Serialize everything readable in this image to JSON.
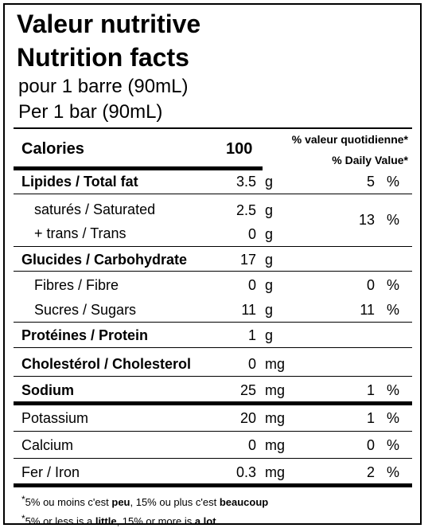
{
  "title_fr": "Valeur nutritive",
  "title_en": "Nutrition facts",
  "serving_fr": "pour 1 barre (90mL)",
  "serving_en": "Per 1 bar (90mL)",
  "calories": {
    "label": "Calories",
    "value": "100"
  },
  "dv_header_fr": "% valeur quotidienne*",
  "dv_header_en": "% Daily Value*",
  "rows": [
    {
      "label": "Lipides / Total fat",
      "amount": "3.5",
      "unit": "g",
      "dv": "5",
      "pct": "%"
    },
    {
      "label": "saturés / Saturated",
      "amount": "2.5",
      "unit": "g"
    },
    {
      "label": "+ trans / Trans",
      "amount": "0",
      "unit": "g"
    },
    {
      "label": "Glucides / Carbohydrate",
      "amount": "17",
      "unit": "g"
    },
    {
      "label": "Fibres / Fibre",
      "amount": "0",
      "unit": "g",
      "dv": "0",
      "pct": "%"
    },
    {
      "label": "Sucres / Sugars",
      "amount": "11",
      "unit": "g",
      "dv": "11",
      "pct": "%"
    },
    {
      "label": "Protéines / Protein",
      "amount": "1",
      "unit": "g"
    },
    {
      "label": "Cholestérol / Cholesterol",
      "amount": "0",
      "unit": "mg"
    },
    {
      "label": "Sodium",
      "amount": "25",
      "unit": "mg",
      "dv": "1",
      "pct": "%"
    },
    {
      "label": "Potassium",
      "amount": "20",
      "unit": "mg",
      "dv": "1",
      "pct": "%"
    },
    {
      "label": "Calcium",
      "amount": "0",
      "unit": "mg",
      "dv": "0",
      "pct": "%"
    },
    {
      "label": "Fer / Iron",
      "amount": "0.3",
      "unit": "mg",
      "dv": "2",
      "pct": "%"
    }
  ],
  "fat_combined_dv": {
    "dv": "13",
    "pct": "%"
  },
  "footnote_fr": {
    "star": "*",
    "a": "5% ou moins c'est ",
    "b": "peu",
    "c": ", 15% ou plus c'est ",
    "d": "beaucoup"
  },
  "footnote_en": {
    "star": "*",
    "a": "5% or less is a ",
    "b": "little",
    "c": ", 15% or more is ",
    "d": "a lot"
  }
}
